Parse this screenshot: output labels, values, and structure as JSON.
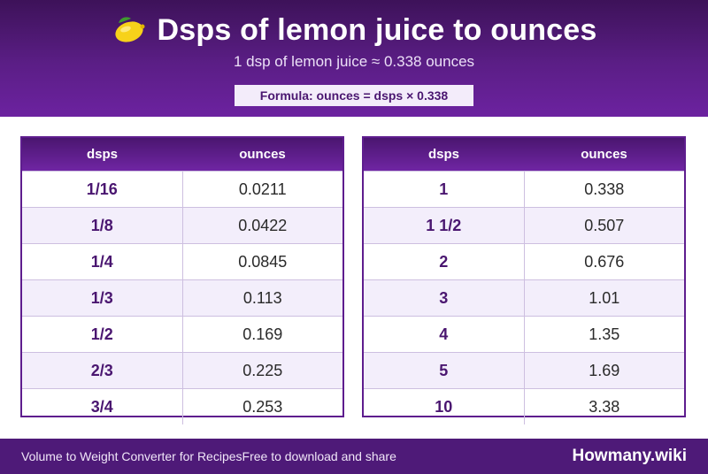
{
  "header": {
    "title": "Dsps of lemon juice to ounces",
    "title_icon": "lemon-icon",
    "subtitle": "1 dsp of lemon juice ≈ 0.338 ounces",
    "formula": "Formula: ounces = dsps × 0.338"
  },
  "tables": [
    {
      "col_key": "dsps",
      "col_val": "ounces",
      "rows": [
        {
          "k": "1/16",
          "v": "0.0211"
        },
        {
          "k": "1/8",
          "v": "0.0422"
        },
        {
          "k": "1/4",
          "v": "0.0845"
        },
        {
          "k": "1/3",
          "v": "0.113"
        },
        {
          "k": "1/2",
          "v": "0.169"
        },
        {
          "k": "2/3",
          "v": "0.225"
        },
        {
          "k": "3/4",
          "v": "0.253"
        }
      ]
    },
    {
      "col_key": "dsps",
      "col_val": "ounces",
      "rows": [
        {
          "k": "1",
          "v": "0.338"
        },
        {
          "k": "1 1/2",
          "v": "0.507"
        },
        {
          "k": "2",
          "v": "0.676"
        },
        {
          "k": "3",
          "v": "1.01"
        },
        {
          "k": "4",
          "v": "1.35"
        },
        {
          "k": "5",
          "v": "1.69"
        },
        {
          "k": "10",
          "v": "3.38"
        }
      ]
    }
  ],
  "footer": {
    "left_text": "Volume to Weight Converter for Recipes",
    "middle_text": "Free to download and share",
    "brand": "Howmany.wiki"
  },
  "colors": {
    "header_purple": "#5b1e86",
    "footer_purple": "#4e1a78",
    "row_alt": "#f3eefb",
    "key_text": "#4a1670"
  }
}
